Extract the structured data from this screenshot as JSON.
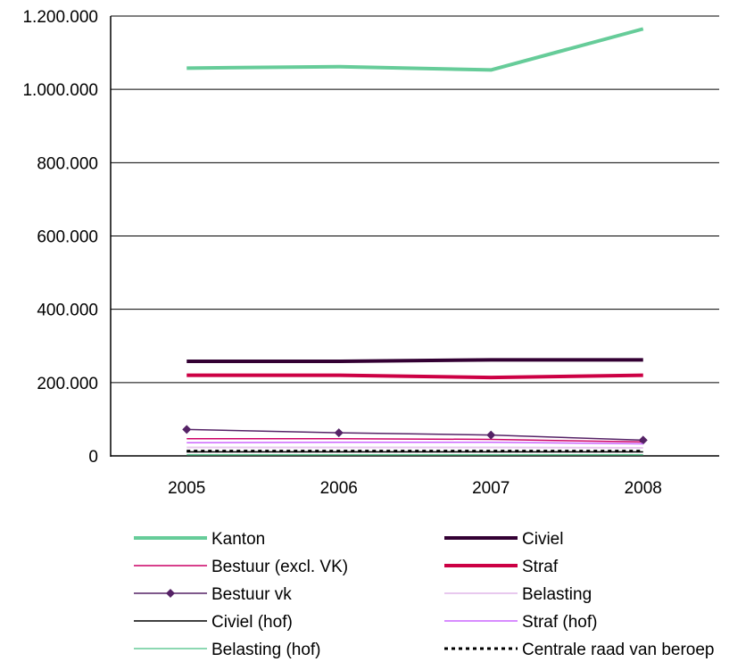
{
  "chart_data": {
    "type": "line",
    "categories": [
      "2005",
      "2006",
      "2007",
      "2008"
    ],
    "ylim": [
      0,
      1200000
    ],
    "y_ticks": [
      {
        "value": 0,
        "label": "0"
      },
      {
        "value": 200000,
        "label": "200.000"
      },
      {
        "value": 400000,
        "label": "400.000"
      },
      {
        "value": 600000,
        "label": "600.000"
      },
      {
        "value": 800000,
        "label": "800.000"
      },
      {
        "value": 1000000,
        "label": "1.000.000"
      },
      {
        "value": 1200000,
        "label": "1.200.000"
      }
    ],
    "grid": true,
    "legend_position": "bottom",
    "series": [
      {
        "name": "Kanton",
        "values": [
          1058000,
          1062000,
          1053000,
          1165000
        ],
        "color": "#66cc99",
        "width": 4,
        "dash": "",
        "marker": "none"
      },
      {
        "name": "Civiel",
        "values": [
          258000,
          258000,
          262000,
          262000
        ],
        "color": "#330033",
        "width": 4,
        "dash": "",
        "marker": "none"
      },
      {
        "name": "Bestuur (excl. VK)",
        "values": [
          47000,
          47000,
          45000,
          38000
        ],
        "color": "#cc0066",
        "width": 1.5,
        "dash": "",
        "marker": "none"
      },
      {
        "name": "Straf",
        "values": [
          220000,
          220000,
          214000,
          220000
        ],
        "color": "#cc0044",
        "width": 4,
        "dash": "",
        "marker": "none"
      },
      {
        "name": "Bestuur vk",
        "values": [
          72000,
          63000,
          57000,
          43000
        ],
        "color": "#552266",
        "width": 1.5,
        "dash": "",
        "marker": "diamond"
      },
      {
        "name": "Belasting",
        "values": [
          23000,
          23000,
          23000,
          22000
        ],
        "color": "#e8c8ee",
        "width": 2,
        "dash": "",
        "marker": "none"
      },
      {
        "name": "Civiel (hof)",
        "values": [
          11000,
          11000,
          11000,
          11000
        ],
        "color": "#000000",
        "width": 1.5,
        "dash": "",
        "marker": "none"
      },
      {
        "name": "Straf (hof)",
        "values": [
          36000,
          37000,
          37000,
          33000
        ],
        "color": "#cc66ff",
        "width": 1.5,
        "dash": "",
        "marker": "none"
      },
      {
        "name": "Belasting (hof)",
        "values": [
          3000,
          3000,
          3000,
          3000
        ],
        "color": "#66cc99",
        "width": 1.5,
        "dash": "",
        "marker": "none"
      },
      {
        "name": "Centrale raad van beroep",
        "values": [
          13000,
          13000,
          13000,
          13000
        ],
        "color": "#000000",
        "width": 3,
        "dash": "4,4",
        "marker": "none"
      }
    ]
  }
}
